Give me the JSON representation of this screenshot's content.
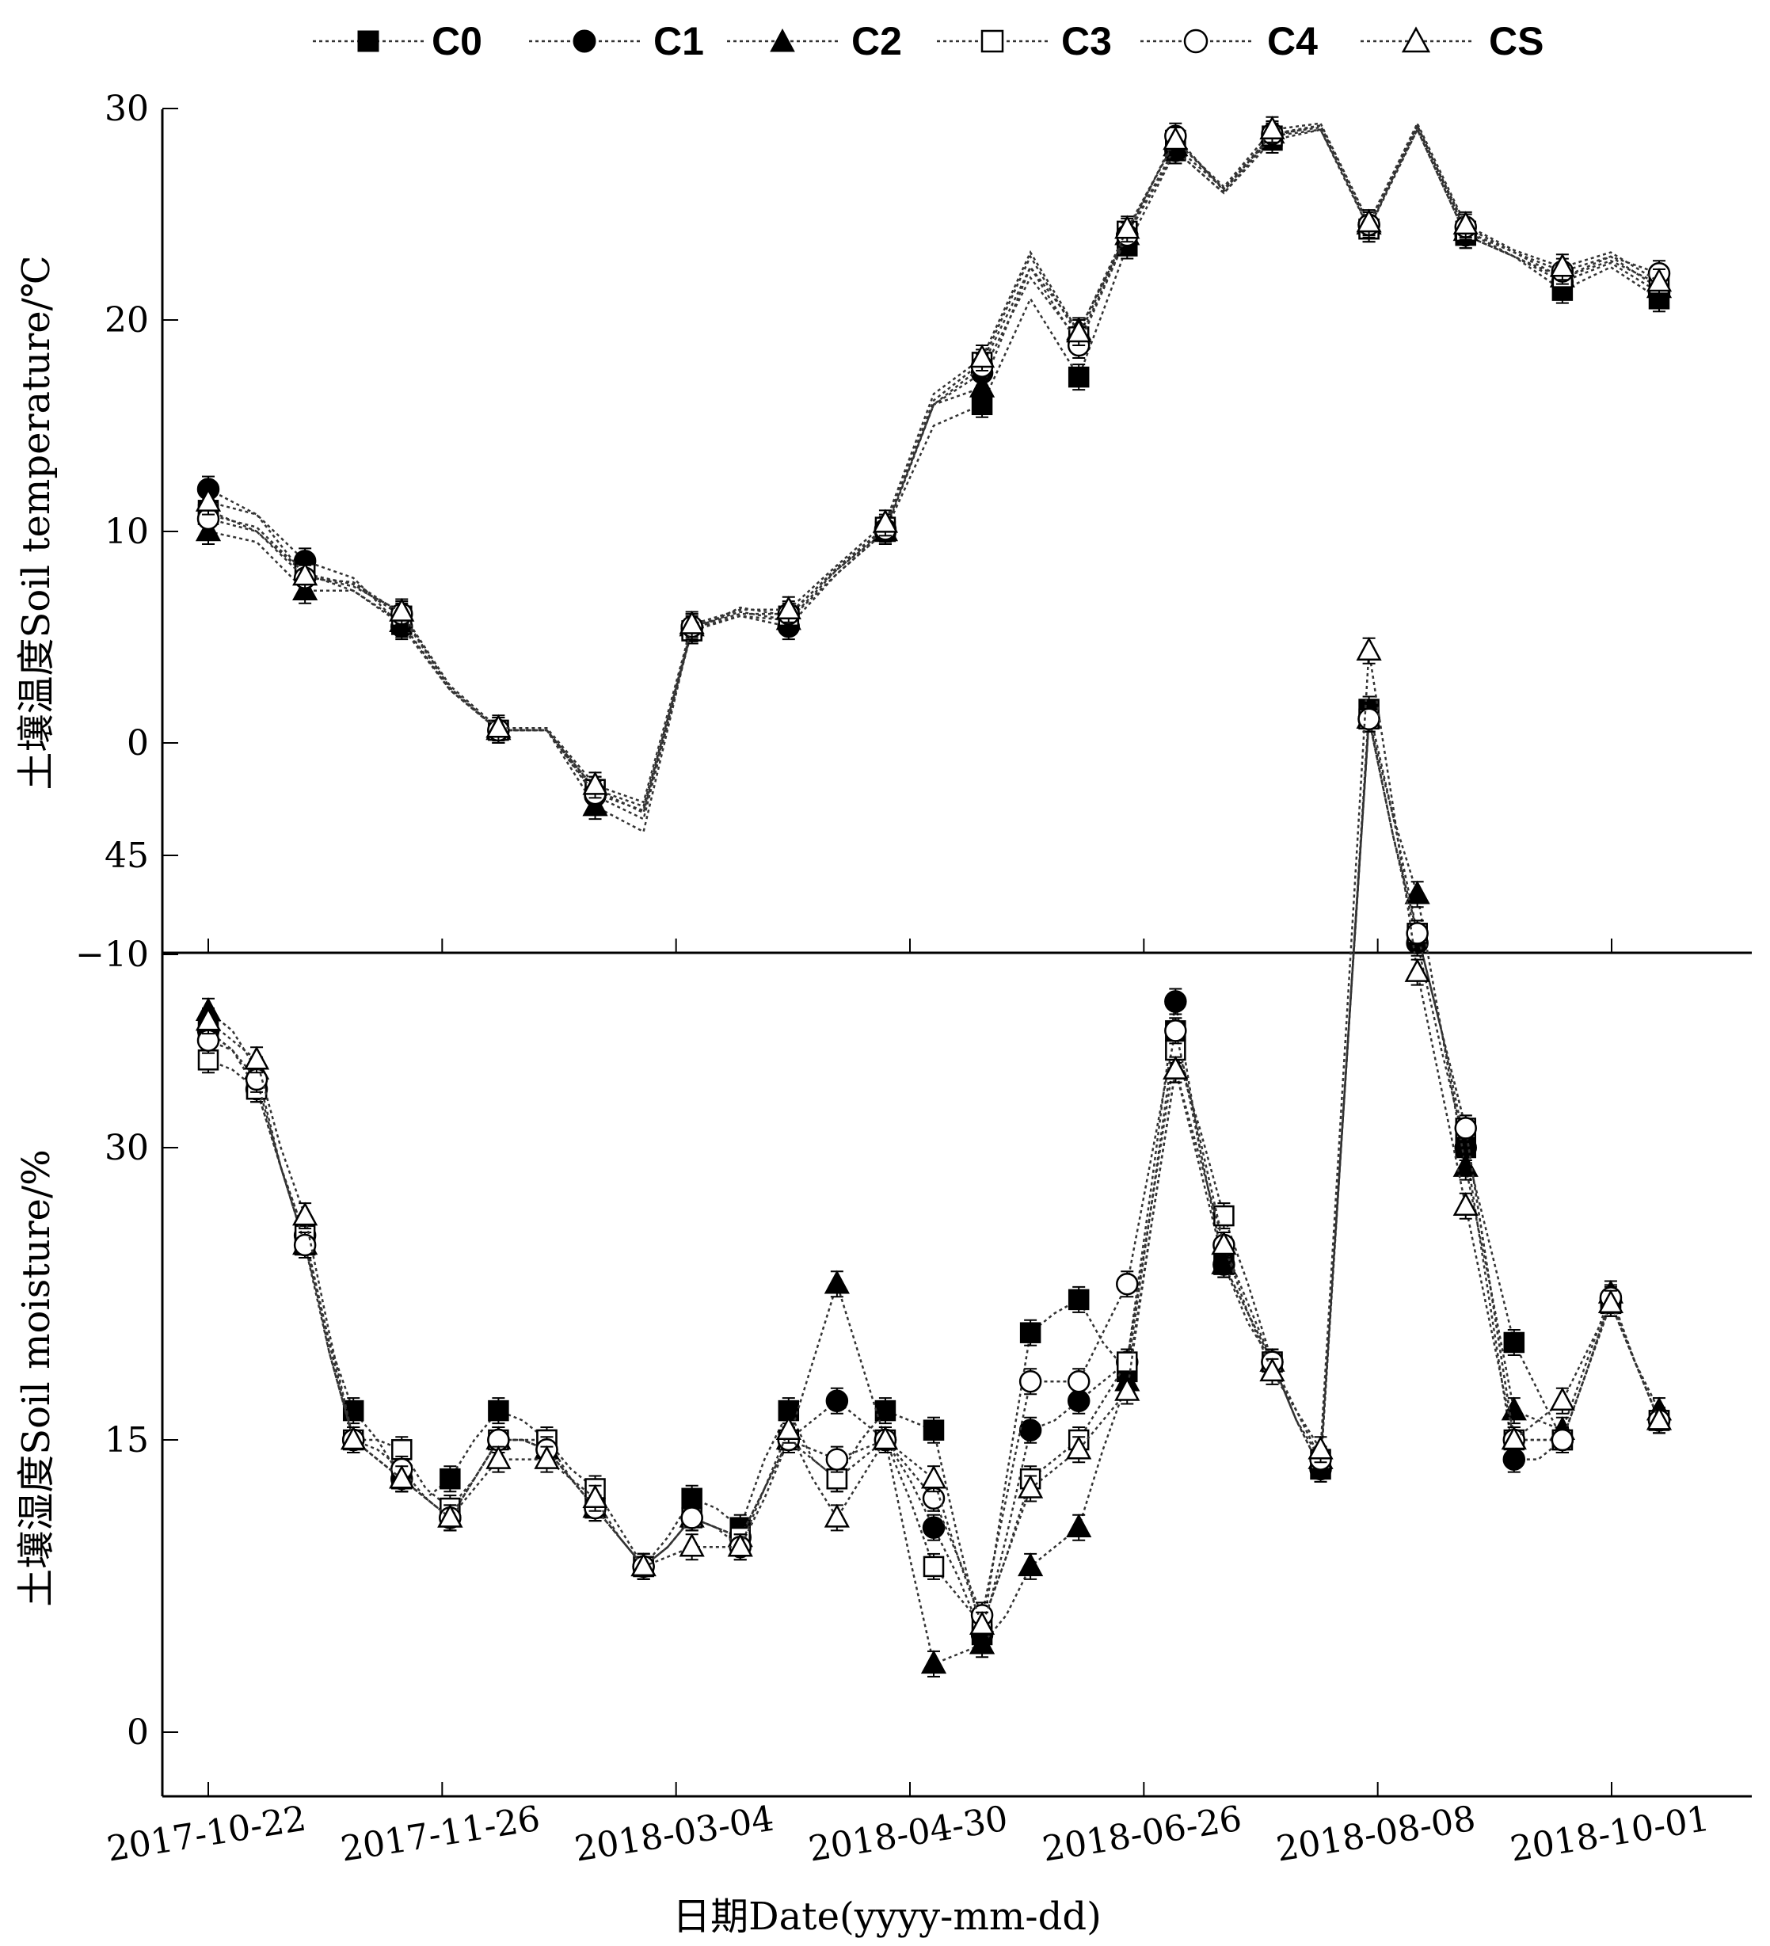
{
  "chart_data": {
    "type": "line",
    "legend": [
      "C0",
      "C1",
      "C2",
      "C3",
      "C4",
      "CS"
    ],
    "x_labels": [
      "2017-10-22",
      "2017-11-26",
      "2018-03-04",
      "2018-04-30",
      "2018-06-26",
      "2018-08-08",
      "2018-10-01"
    ],
    "xlabel": "日期Date(yyyy-mm-dd)",
    "panels": [
      {
        "id": "temperature",
        "ylabel": "土壤温度Soil temperature/℃",
        "ylim": [
          -10,
          30
        ],
        "yticks": [
          -10,
          0,
          10,
          20,
          30
        ],
        "x": [
          0,
          1,
          2,
          3,
          4,
          5,
          6,
          7,
          8,
          9,
          10,
          11,
          12,
          13,
          14,
          15,
          16,
          17,
          18,
          19,
          20,
          21,
          22,
          23,
          24,
          25,
          26,
          27,
          28,
          29,
          30
        ],
        "markers": [
          0,
          2,
          4,
          6,
          8,
          10,
          12,
          14,
          16,
          18,
          19,
          20,
          22,
          24,
          26,
          28,
          30
        ],
        "series": [
          {
            "name": "C0",
            "values": [
              11.0,
              10.0,
              8.0,
              7.2,
              5.6,
              2.5,
              0.6,
              0.6,
              -2.2,
              -3.3,
              5.3,
              6.0,
              5.8,
              8.0,
              10.0,
              15.0,
              16.0,
              21.0,
              17.3,
              23.5,
              28.0,
              26.0,
              28.5,
              29.0,
              24.3,
              29.0,
              24.0,
              23.0,
              21.4,
              22.5,
              21.0
            ]
          },
          {
            "name": "C1",
            "values": [
              12.0,
              10.8,
              8.6,
              7.8,
              5.5,
              2.5,
              0.6,
              0.6,
              -2.5,
              -3.6,
              5.4,
              6.0,
              5.5,
              8.0,
              10.0,
              16.0,
              17.5,
              22.0,
              19.0,
              24.0,
              28.0,
              26.0,
              28.7,
              29.0,
              24.5,
              29.0,
              24.0,
              23.0,
              21.8,
              22.7,
              21.3
            ]
          },
          {
            "name": "C2",
            "values": [
              10.0,
              9.5,
              7.2,
              7.2,
              5.7,
              2.5,
              0.6,
              0.6,
              -3.0,
              -4.2,
              5.5,
              6.2,
              5.8,
              8.2,
              10.0,
              16.0,
              16.8,
              22.5,
              19.5,
              24.0,
              28.2,
              26.2,
              28.8,
              29.2,
              24.5,
              29.2,
              24.2,
              23.2,
              22.0,
              23.0,
              21.5
            ]
          },
          {
            "name": "C3",
            "values": [
              10.8,
              10.2,
              8.0,
              7.5,
              6.0,
              2.6,
              0.6,
              0.6,
              -2.2,
              -3.0,
              5.3,
              6.4,
              6.0,
              8.3,
              10.2,
              16.2,
              18.0,
              23.0,
              19.2,
              24.2,
              28.5,
              26.2,
              28.7,
              29.2,
              24.3,
              29.2,
              24.2,
              23.0,
              22.0,
              22.8,
              21.7
            ]
          },
          {
            "name": "C4",
            "values": [
              10.6,
              10.0,
              7.8,
              7.6,
              6.1,
              2.6,
              0.6,
              0.6,
              -2.4,
              -3.2,
              5.5,
              6.1,
              6.1,
              8.2,
              10.1,
              16.0,
              17.8,
              22.5,
              18.8,
              24.0,
              28.7,
              26.1,
              28.8,
              29.1,
              24.5,
              29.1,
              24.4,
              23.2,
              22.3,
              23.0,
              22.2
            ]
          },
          {
            "name": "CS",
            "values": [
              11.4,
              10.8,
              7.9,
              7.4,
              6.2,
              2.7,
              0.7,
              0.7,
              -2.0,
              -2.8,
              5.6,
              6.3,
              6.3,
              8.4,
              10.4,
              16.5,
              18.2,
              23.2,
              19.4,
              24.3,
              28.5,
              26.3,
              29.0,
              29.3,
              24.6,
              29.3,
              24.5,
              23.3,
              22.5,
              23.2,
              21.8
            ]
          }
        ]
      },
      {
        "id": "moisture",
        "ylabel": "土壤湿度Soil moisture/%",
        "ylim": [
          -5,
          60
        ],
        "yticks": [
          0,
          15,
          30,
          45
        ],
        "x": [
          0,
          1,
          2,
          3,
          4,
          5,
          6,
          7,
          8,
          9,
          10,
          11,
          12,
          13,
          14,
          15,
          16,
          17,
          18,
          19,
          20,
          21,
          22,
          23,
          24,
          25,
          26,
          27,
          28,
          29,
          30,
          31,
          32,
          33,
          34,
          35,
          36,
          37,
          38,
          39,
          40,
          41,
          42,
          43,
          44,
          45,
          46,
          47,
          48,
          49,
          50,
          51,
          52,
          53,
          54,
          55,
          56,
          57,
          58,
          59,
          60
        ],
        "markers": [
          0,
          2,
          4,
          6,
          8,
          10,
          12,
          14,
          16,
          18,
          20,
          22,
          24,
          26,
          28,
          30,
          32,
          34,
          36,
          38,
          40,
          42,
          44,
          46,
          48,
          50,
          52,
          54,
          56,
          58,
          60
        ],
        "series": [
          {
            "name": "C0",
            "values": [
              36.0,
              35.0,
              33.0,
              29.0,
              25.0,
              20.0,
              16.5,
              15.0,
              13.0,
              12.0,
              13.0,
              15.0,
              16.5,
              16.0,
              15.0,
              13.0,
              11.5,
              10.0,
              8.5,
              10.0,
              12.0,
              11.5,
              10.5,
              14.0,
              16.5,
              14.0,
              13.0,
              15.0,
              16.5,
              16.0,
              15.5,
              10.0,
              5.0,
              13.0,
              20.5,
              21.5,
              22.2,
              20.0,
              18.5,
              27.0,
              36.0,
              30.0,
              24.0,
              21.5,
              19.0,
              16.0,
              13.5,
              33.0,
              52.5,
              47.0,
              41.0,
              36.0,
              30.0,
              25.0,
              20.0,
              17.5,
              15.0,
              18.5,
              22.0,
              19.0,
              16.0
            ]
          },
          {
            "name": "C1",
            "values": [
              36.0,
              35.0,
              33.0,
              29.0,
              25.5,
              19.5,
              15.0,
              14.0,
              13.0,
              12.0,
              11.0,
              13.0,
              15.0,
              15.0,
              14.5,
              13.0,
              11.5,
              10.0,
              8.5,
              9.5,
              11.0,
              10.5,
              10.0,
              12.5,
              15.0,
              16.0,
              17.0,
              16.0,
              15.0,
              13.0,
              10.5,
              8.0,
              5.0,
              10.0,
              15.5,
              16.0,
              17.0,
              18.0,
              19.0,
              28.0,
              37.5,
              30.0,
              24.0,
              21.5,
              19.0,
              16.0,
              13.5,
              33.0,
              52.0,
              46.0,
              40.5,
              35.0,
              30.0,
              22.0,
              14.0,
              14.0,
              15.0,
              18.5,
              22.2,
              19.0,
              16.0
            ]
          },
          {
            "name": "C2",
            "values": [
              37.0,
              36.0,
              34.0,
              29.0,
              25.0,
              20.0,
              15.0,
              14.0,
              13.0,
              12.0,
              11.0,
              13.0,
              15.0,
              15.0,
              14.5,
              13.0,
              11.5,
              10.0,
              8.5,
              9.5,
              11.0,
              10.5,
              10.0,
              12.5,
              15.0,
              19.0,
              23.0,
              19.0,
              15.0,
              9.0,
              3.5,
              4.0,
              4.5,
              6.0,
              8.5,
              9.5,
              10.5,
              14.5,
              18.0,
              26.0,
              34.0,
              29.0,
              24.0,
              21.0,
              19.0,
              16.0,
              14.0,
              33.0,
              52.0,
              47.0,
              43.0,
              36.0,
              29.0,
              23.0,
              16.5,
              16.0,
              15.5,
              19.0,
              22.5,
              19.0,
              16.5
            ]
          },
          {
            "name": "C3",
            "values": [
              34.5,
              34.0,
              33.0,
              29.0,
              25.5,
              20.0,
              15.0,
              15.0,
              14.5,
              12.5,
              11.5,
              13.0,
              15.0,
              15.0,
              15.0,
              13.5,
              12.5,
              10.5,
              8.5,
              9.5,
              11.0,
              10.5,
              10.0,
              12.5,
              15.0,
              14.0,
              13.0,
              14.0,
              15.0,
              12.0,
              8.5,
              7.0,
              5.5,
              9.0,
              13.0,
              14.0,
              15.0,
              17.0,
              19.0,
              27.0,
              35.0,
              31.0,
              26.5,
              23.0,
              19.0,
              16.5,
              14.0,
              33.0,
              52.0,
              46.0,
              41.0,
              36.0,
              31.0,
              23.0,
              15.0,
              15.0,
              15.0,
              18.5,
              22.0,
              19.0,
              16.0
            ]
          },
          {
            "name": "C4",
            "values": [
              35.5,
              35.0,
              33.5,
              29.0,
              25.0,
              19.5,
              15.0,
              14.5,
              13.5,
              12.0,
              11.0,
              13.0,
              15.0,
              15.0,
              14.5,
              13.0,
              11.5,
              10.0,
              8.5,
              9.5,
              11.0,
              10.5,
              9.5,
              12.0,
              15.0,
              14.5,
              14.0,
              14.5,
              15.0,
              13.5,
              12.0,
              9.0,
              6.0,
              12.0,
              18.0,
              18.0,
              18.0,
              20.5,
              23.0,
              29.5,
              36.0,
              30.5,
              25.0,
              22.0,
              19.0,
              16.5,
              14.0,
              33.0,
              52.0,
              46.0,
              41.0,
              36.0,
              31.0,
              23.0,
              15.0,
              15.0,
              15.0,
              18.5,
              22.3,
              19.0,
              16.0
            ]
          },
          {
            "name": "CS",
            "values": [
              36.5,
              35.5,
              34.5,
              30.0,
              26.5,
              20.5,
              15.0,
              14.0,
              13.0,
              12.0,
              11.0,
              12.5,
              14.0,
              14.0,
              14.0,
              13.0,
              12.0,
              10.0,
              8.5,
              9.0,
              9.5,
              9.5,
              9.5,
              12.5,
              15.5,
              13.0,
              11.0,
              13.0,
              15.0,
              14.0,
              13.0,
              9.0,
              5.5,
              9.0,
              12.5,
              13.5,
              14.5,
              16.0,
              17.5,
              26.0,
              34.0,
              29.5,
              25.0,
              21.5,
              18.5,
              16.5,
              14.5,
              35.0,
              55.5,
              47.5,
              39.0,
              33.0,
              27.0,
              21.0,
              15.0,
              16.0,
              17.0,
              19.5,
              22.0,
              19.0,
              16.0
            ]
          }
        ]
      }
    ]
  }
}
